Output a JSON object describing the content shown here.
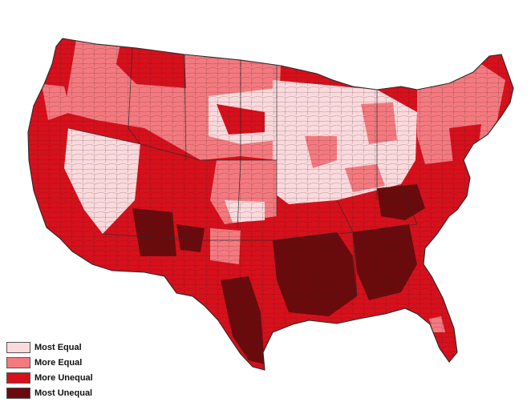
{
  "map": {
    "legend": [
      {
        "label": "Most Equal",
        "color": "#fadadd"
      },
      {
        "label": "More Equal",
        "color": "#f47a80"
      },
      {
        "label": "More Unequal",
        "color": "#d7101c"
      },
      {
        "label": "Most Unequal",
        "color": "#6b0a0c"
      }
    ],
    "border_color": "#2a2a2a"
  }
}
